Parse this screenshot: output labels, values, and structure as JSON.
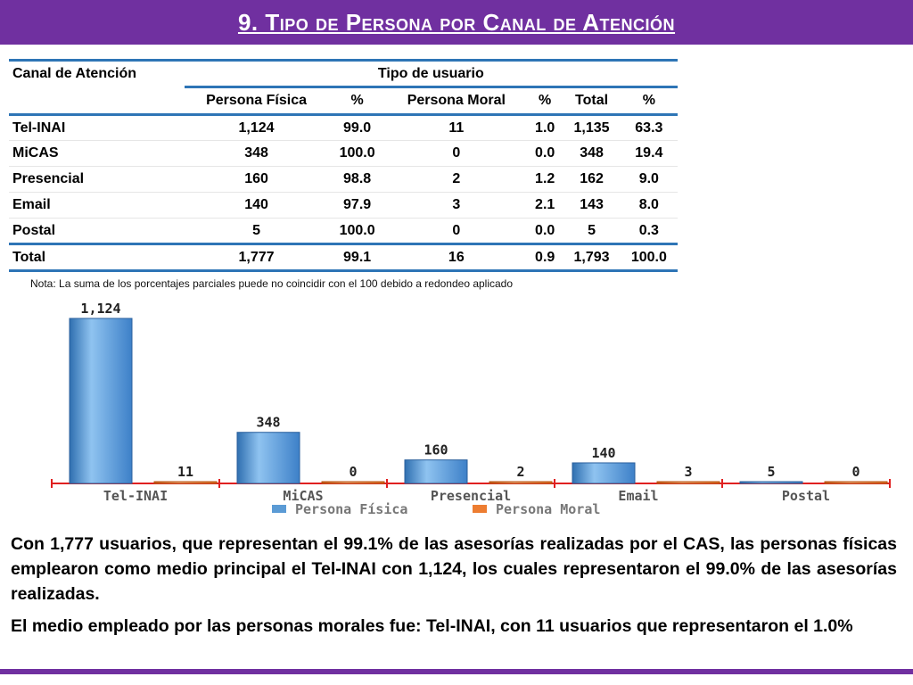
{
  "header": {
    "title": "9. Tipo de Persona por Canal de Atención",
    "background": "#7030a0"
  },
  "table": {
    "corner_label": "Canal de Atención",
    "group_header": "Tipo de usuario",
    "columns": [
      "Persona Física",
      "%",
      "Persona Moral",
      "%",
      "Total",
      "%"
    ],
    "rows": [
      {
        "label": "Tel-INAI",
        "values": [
          "1,124",
          "99.0",
          "11",
          "1.0",
          "1,135",
          "63.3"
        ]
      },
      {
        "label": "MiCAS",
        "values": [
          "348",
          "100.0",
          "0",
          "0.0",
          "348",
          "19.4"
        ]
      },
      {
        "label": "Presencial",
        "values": [
          "160",
          "98.8",
          "2",
          "1.2",
          "162",
          "9.0"
        ]
      },
      {
        "label": "Email",
        "values": [
          "140",
          "97.9",
          "3",
          "2.1",
          "143",
          "8.0"
        ]
      },
      {
        "label": "Postal",
        "values": [
          "5",
          "100.0",
          "0",
          "0.0",
          "5",
          "0.3"
        ]
      }
    ],
    "total_row": {
      "label": "Total",
      "values": [
        "1,777",
        "99.1",
        "16",
        "0.9",
        "1,793",
        "100.0"
      ]
    },
    "rule_color": "#2e75b6"
  },
  "note": "Nota: La suma de los porcentajes parciales puede no coincidir con el 100 debido a redondeo aplicado",
  "chart_data": {
    "type": "bar",
    "categories": [
      "Tel-INAI",
      "MiCAS",
      "Presencial",
      "Email",
      "Postal"
    ],
    "series": [
      {
        "name": "Persona Física",
        "values": [
          1124,
          348,
          160,
          140,
          5
        ],
        "labels": [
          "1,124",
          "348",
          "160",
          "140",
          "5"
        ],
        "color": "#5b9bd5"
      },
      {
        "name": "Persona Moral",
        "values": [
          11,
          0,
          2,
          3,
          0
        ],
        "labels": [
          "11",
          "0",
          "2",
          "3",
          "0"
        ],
        "color": "#ed7d31"
      }
    ],
    "ylim": [
      0,
      1124
    ],
    "grid": false,
    "legend": "bottom",
    "axis_color": "#e02020"
  },
  "paragraphs": [
    "Con 1,777 usuarios, que representan el 99.1% de las asesorías realizadas por el CAS, las personas físicas emplearon como medio principal el Tel-INAI con 1,124, los cuales representaron el 99.0% de las asesorías realizadas.",
    "El medio empleado por las personas morales fue: Tel-INAI, con 11 usuarios que representaron el 1.0%"
  ]
}
